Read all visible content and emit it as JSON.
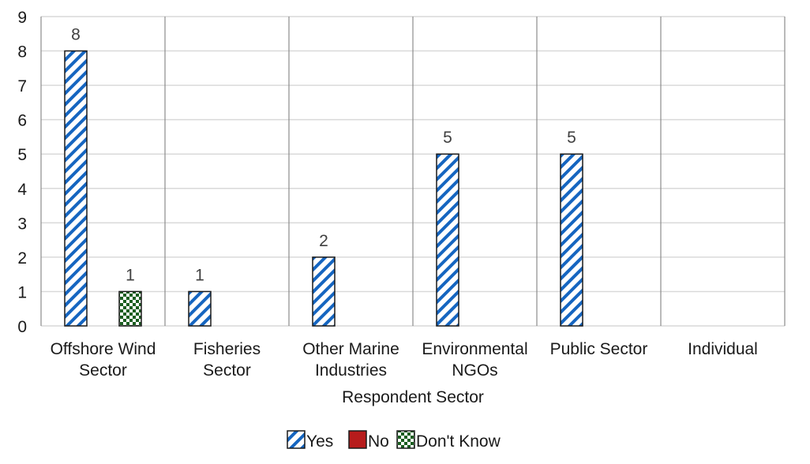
{
  "chart_data": {
    "type": "bar",
    "title": "",
    "xlabel": "Respondent Sector",
    "ylabel": "",
    "ylim": [
      0,
      9
    ],
    "yticks": [
      0,
      1,
      2,
      3,
      4,
      5,
      6,
      7,
      8,
      9
    ],
    "grid": true,
    "legend_position": "bottom",
    "categories": [
      [
        "Offshore Wind",
        "Sector"
      ],
      [
        "Fisheries",
        "Sector"
      ],
      [
        "Other Marine",
        "Industries"
      ],
      [
        "Environmental",
        "NGOs"
      ],
      [
        "Public Sector"
      ],
      [
        "Individual"
      ]
    ],
    "series": [
      {
        "name": "Yes",
        "color": "#1565c0",
        "pattern": "diagonal-hatch",
        "values": [
          8,
          1,
          2,
          5,
          5,
          0
        ]
      },
      {
        "name": "No",
        "color": "#b71c1c",
        "pattern": "solid",
        "values": [
          0,
          0,
          0,
          0,
          0,
          0
        ]
      },
      {
        "name": "Don't Know",
        "color": "#1b5e20",
        "pattern": "checkerboard",
        "values": [
          1,
          0,
          0,
          0,
          0,
          0
        ]
      }
    ]
  },
  "legend": {
    "items": [
      {
        "label": "Yes"
      },
      {
        "label": "No"
      },
      {
        "label": "Don't Know"
      }
    ]
  }
}
